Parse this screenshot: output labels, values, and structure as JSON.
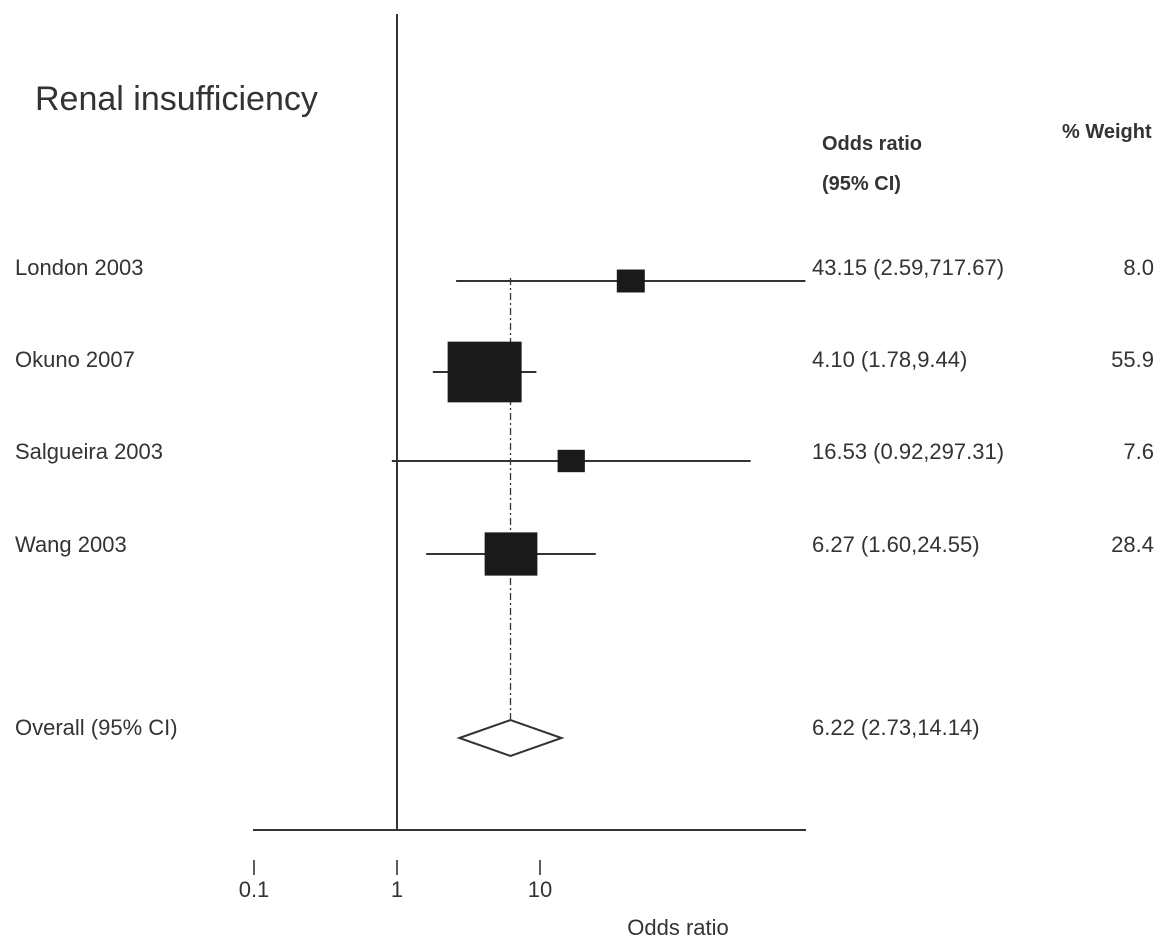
{
  "chart_data": {
    "type": "forest",
    "title": "Renal insufficiency",
    "xlabel": "Odds ratio",
    "x_scale": "log",
    "x_ticks": [
      "0.1",
      "1",
      "10"
    ],
    "header_or": [
      "Odds ratio",
      "(95% CI)"
    ],
    "header_weight": "% Weight",
    "reference_line": 1,
    "pooled_line": 6.22,
    "studies": [
      {
        "label": "London 2003",
        "or": 43.15,
        "lo": 2.59,
        "hi": 717.67,
        "or_text": "43.15 (2.59,717.67)",
        "weight": 8.0,
        "weight_text": "8.0"
      },
      {
        "label": "Okuno 2007",
        "or": 4.1,
        "lo": 1.78,
        "hi": 9.44,
        "or_text": "4.10 (1.78,9.44)",
        "weight": 55.9,
        "weight_text": "55.9"
      },
      {
        "label": "Salgueira 2003",
        "or": 16.53,
        "lo": 0.92,
        "hi": 297.31,
        "or_text": "16.53 (0.92,297.31)",
        "weight": 7.6,
        "weight_text": "7.6"
      },
      {
        "label": "Wang 2003",
        "or": 6.27,
        "lo": 1.6,
        "hi": 24.55,
        "or_text": "6.27 (1.60,24.55)",
        "weight": 28.4,
        "weight_text": "28.4"
      }
    ],
    "overall": {
      "label": "Overall (95% CI)",
      "or": 6.22,
      "lo": 2.73,
      "hi": 14.14,
      "or_text": "6.22 (2.73,14.14)"
    },
    "colors": {
      "ink": "#333333",
      "box": "#1a1a1a"
    }
  }
}
